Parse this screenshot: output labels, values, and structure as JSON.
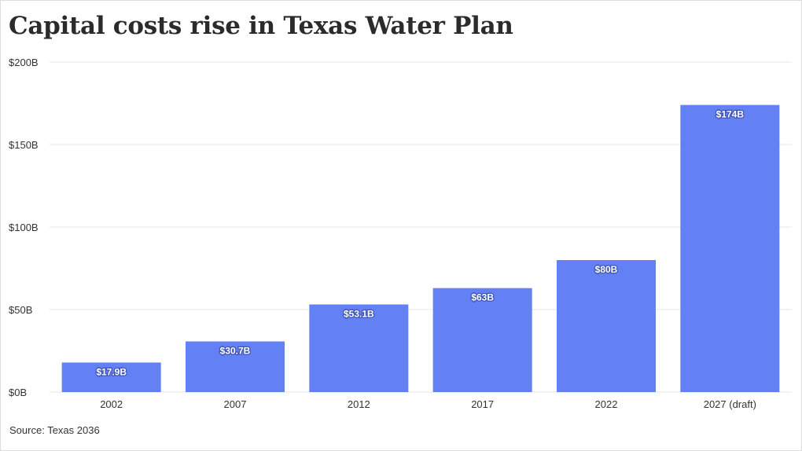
{
  "title": "Capital costs rise in Texas Water Plan",
  "source": {
    "label": "Source:",
    "text": "Texas 2036"
  },
  "colors": {
    "bar": "#6380f4",
    "grid": "#e6e6e6",
    "axis_text": "#333333",
    "label_text": "#ffffff"
  },
  "chart_data": {
    "type": "bar",
    "title": "Capital costs rise in Texas Water Plan",
    "categories": [
      "2002",
      "2007",
      "2012",
      "2017",
      "2022",
      "2027 (draft)"
    ],
    "values": [
      17.9,
      30.7,
      53.1,
      63,
      80,
      174
    ],
    "data_labels": [
      "$17.9B",
      "$30.7B",
      "$53.1B",
      "$63B",
      "$80B",
      "$174B"
    ],
    "ylim": [
      0,
      200
    ],
    "yticks": [
      0,
      50,
      100,
      150,
      200
    ],
    "ytick_labels": [
      "$0B",
      "$50B",
      "$100B",
      "$150B",
      "$200B"
    ],
    "xlabel": "",
    "ylabel": "",
    "grid": true,
    "legend": "none"
  }
}
